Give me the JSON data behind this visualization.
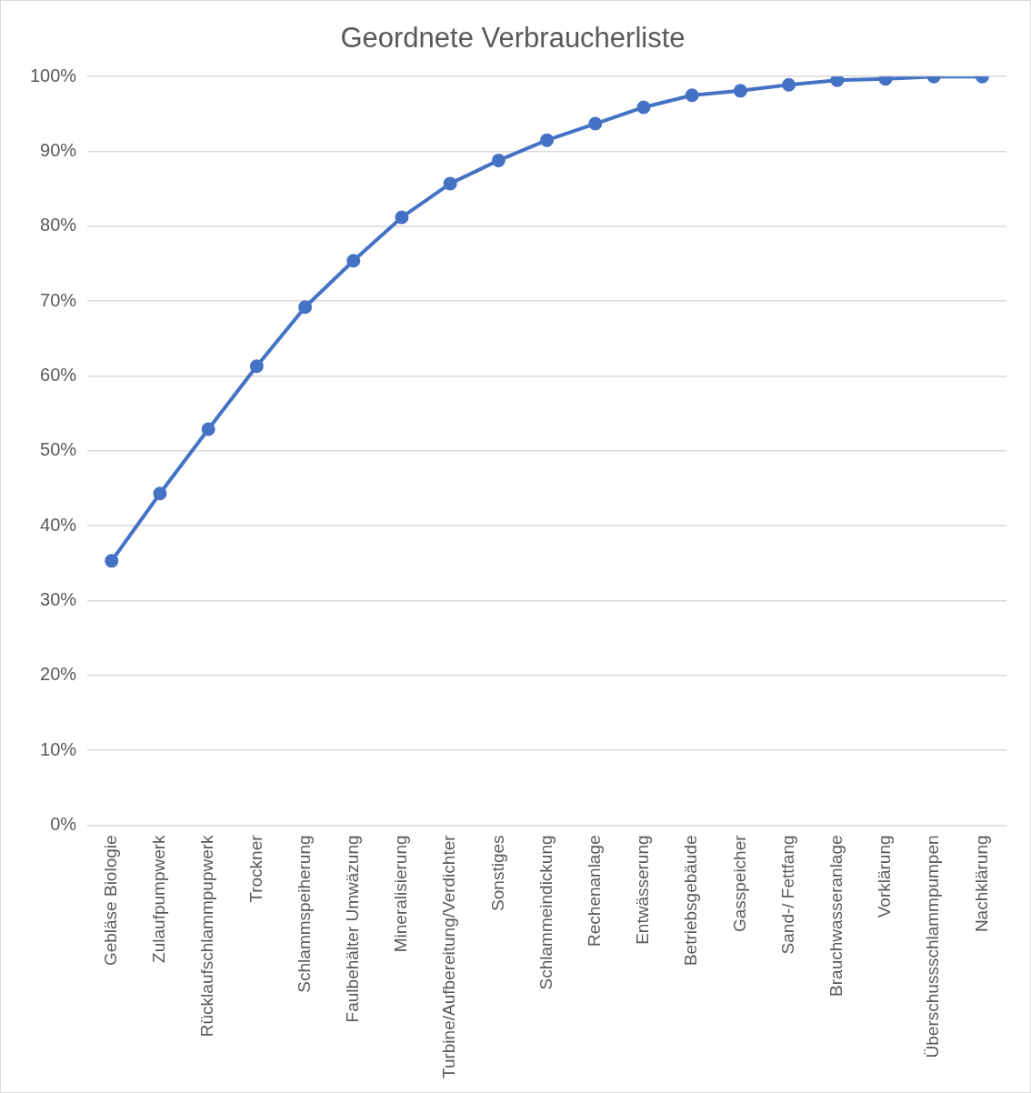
{
  "chart_data": {
    "type": "line",
    "title": "Geordnete Verbraucherliste",
    "categories": [
      "Gebläse Biologie",
      "Zulaufpumpwerk",
      "Rücklaufschlammpupwerk",
      "Trockner",
      "Schlammspeiherung",
      "Faulbehälter Umwäzung",
      "Mineralisierung",
      "Turbine/Aufbereitung/Verdichter",
      "Sonstiges",
      "Schlammeindickung",
      "Rechenanlage",
      "Entwässerung",
      "Betriebsgebäude",
      "Gasspeicher",
      "Sand-/ Fettfang",
      "Brauchwasseranlage",
      "Vorklärung",
      "Überschussschlammpumpen",
      "Nachklärung"
    ],
    "series": [
      {
        "color": "#4472c4",
        "values": [
          35.3,
          44.3,
          52.9,
          61.3,
          69.2,
          75.4,
          81.2,
          85.7,
          88.8,
          91.5,
          93.7,
          95.9,
          97.5,
          98.1,
          98.9,
          99.5,
          99.7,
          100,
          100
        ]
      }
    ],
    "ylim": [
      0,
      100
    ],
    "yticks": [
      {
        "value": 0,
        "label": "0%"
      },
      {
        "value": 10,
        "label": "10%"
      },
      {
        "value": 20,
        "label": "20%"
      },
      {
        "value": 30,
        "label": "30%"
      },
      {
        "value": 40,
        "label": "40%"
      },
      {
        "value": 50,
        "label": "50%"
      },
      {
        "value": 60,
        "label": "60%"
      },
      {
        "value": 70,
        "label": "70%"
      },
      {
        "value": 80,
        "label": "80%"
      },
      {
        "value": 90,
        "label": "90%"
      },
      {
        "value": 100,
        "label": "100%"
      }
    ],
    "grid": "y",
    "legend": false,
    "marker": "circle",
    "line_style": "solid"
  }
}
